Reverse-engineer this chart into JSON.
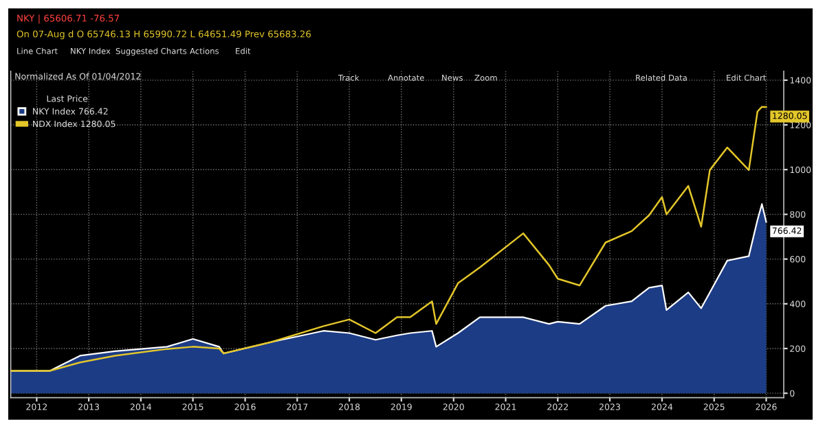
{
  "chart_data": {
    "type": "area",
    "title": "Normalized As Of 01/04/2012",
    "legend_title": "Last Price",
    "annotations": [
      "NKY | 65606.71 -76.57",
      "On 07-Aug d O 65746.13 H 65990.72 L 64651.49 Prev 65683.26",
      "Line Chart",
      "NKY Index",
      "Suggested Charts",
      "Actions",
      "Edit",
      "Track",
      "Annotate",
      "News",
      "Zoom",
      "Related Data",
      "Edit Chart"
    ],
    "x": [
      "2012-01",
      "2012-10",
      "2013-05",
      "2014-01",
      "2015-01",
      "2015-07",
      "2016-01",
      "2016-02",
      "2017-01",
      "2018-01",
      "2018-07",
      "2019-01",
      "2019-06",
      "2019-09",
      "2020-02",
      "2020-03",
      "2020-08",
      "2021-01",
      "2021-11",
      "2022-05",
      "2022-07",
      "2022-12",
      "2023-06",
      "2023-12",
      "2024-04",
      "2024-07",
      "2024-08",
      "2025-01",
      "2025-04",
      "2025-06",
      "2025-10",
      "2026-03",
      "2026-05",
      "2026-06",
      "2026-07"
    ],
    "series": [
      {
        "name": "NKY Index 766.42",
        "color": "#1c3c86",
        "values": [
          100,
          100,
          168,
          188,
          208,
          243,
          208,
          178,
          229,
          279,
          269,
          239,
          259,
          269,
          279,
          208,
          269,
          340,
          340,
          310,
          320,
          310,
          391,
          411,
          472,
          482,
          372,
          451,
          380,
          451,
          593,
          613,
          775,
          846,
          766.42
        ],
        "value_labels": [
          null,
          null,
          null,
          null,
          null,
          null,
          null,
          null,
          null,
          null,
          null,
          null,
          null,
          null,
          null,
          null,
          null,
          null,
          null,
          null,
          null,
          null,
          null,
          null,
          null,
          null,
          null,
          null,
          null,
          null,
          null,
          null,
          null,
          null,
          "766.42"
        ]
      },
      {
        "name": "NDX Index 1280.05",
        "type": "line",
        "color": "#e3c62a",
        "values": [
          100,
          100,
          138,
          168,
          198,
          208,
          200,
          178,
          229,
          300,
          330,
          269,
          340,
          340,
          411,
          310,
          492,
          563,
          715,
          573,
          512,
          482,
          674,
          725,
          796,
          877,
          800,
          927,
          745,
          998,
          1099,
          998,
          1260,
          1281,
          1280.05
        ],
        "value_labels": [
          null,
          null,
          null,
          null,
          null,
          null,
          null,
          null,
          null,
          null,
          null,
          null,
          null,
          null,
          null,
          null,
          null,
          null,
          null,
          null,
          null,
          null,
          null,
          null,
          null,
          null,
          null,
          null,
          null,
          null,
          null,
          null,
          null,
          null,
          "1280.05"
        ]
      }
    ],
    "xlim": [
      "2012-01-01",
      "2026-11-01"
    ],
    "xticks": [
      {
        "value": "2012-07-01",
        "label": "2012"
      },
      {
        "value": "2013-07-01",
        "label": "2013"
      },
      {
        "value": "2014-07-01",
        "label": "2014"
      },
      {
        "value": "2015-07-01",
        "label": "2015"
      },
      {
        "value": "2016-07-01",
        "label": "2016"
      },
      {
        "value": "2017-07-01",
        "label": "2017"
      },
      {
        "value": "2018-07-01",
        "label": "2018"
      },
      {
        "value": "2019-07-01",
        "label": "2019"
      },
      {
        "value": "2020-07-01",
        "label": "2020"
      },
      {
        "value": "2021-07-01",
        "label": "2021"
      },
      {
        "value": "2022-07-01",
        "label": "2022"
      },
      {
        "value": "2023-07-01",
        "label": "2023"
      },
      {
        "value": "2024-07-01",
        "label": "2024"
      },
      {
        "value": "2025-07-01",
        "label": "2025"
      },
      {
        "value": "2026-07-01",
        "label": "2026"
      }
    ],
    "ylim": [
      -20,
      1440
    ],
    "yticks": [
      0,
      200,
      400,
      600,
      800,
      1000,
      1200,
      1400
    ],
    "grid": true,
    "legend": "top left"
  }
}
